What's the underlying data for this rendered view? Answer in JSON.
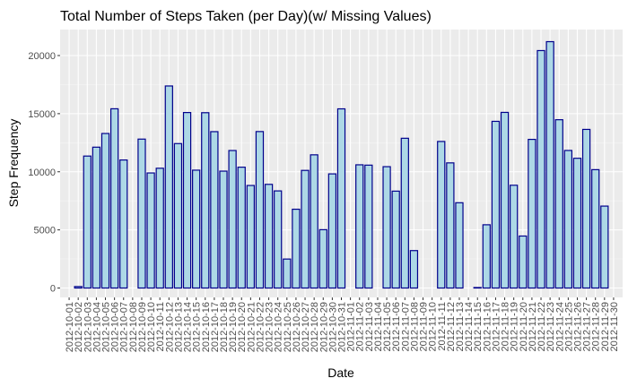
{
  "chart_data": {
    "type": "bar",
    "title": "Total Number of Steps Taken (per Day)(w/ Missing Values)",
    "xlabel": "Date",
    "ylabel": "Step Frequency",
    "ylim": [
      0,
      22000
    ],
    "yticks": [
      0,
      5000,
      10000,
      15000,
      20000
    ],
    "grid": true,
    "legend": "none",
    "colors": {
      "panel_background": "#ebebeb",
      "grid_major": "#ffffff",
      "grid_minor": "#f5f5f5",
      "bar_fill": "#add8e6",
      "bar_outline": "#00008b",
      "tick_text": "#4d4d4d",
      "tick_mark": "#333333"
    },
    "categories": [
      "2012-10-01",
      "2012-10-02",
      "2012-10-03",
      "2012-10-04",
      "2012-10-05",
      "2012-10-06",
      "2012-10-07",
      "2012-10-08",
      "2012-10-09",
      "2012-10-10",
      "2012-10-11",
      "2012-10-12",
      "2012-10-13",
      "2012-10-14",
      "2012-10-15",
      "2012-10-16",
      "2012-10-17",
      "2012-10-18",
      "2012-10-19",
      "2012-10-20",
      "2012-10-21",
      "2012-10-22",
      "2012-10-23",
      "2012-10-24",
      "2012-10-25",
      "2012-10-26",
      "2012-10-27",
      "2012-10-28",
      "2012-10-29",
      "2012-10-30",
      "2012-10-31",
      "2012-11-01",
      "2012-11-02",
      "2012-11-03",
      "2012-11-04",
      "2012-11-05",
      "2012-11-06",
      "2012-11-07",
      "2012-11-08",
      "2012-11-09",
      "2012-11-10",
      "2012-11-11",
      "2012-11-12",
      "2012-11-13",
      "2012-11-14",
      "2012-11-15",
      "2012-11-16",
      "2012-11-17",
      "2012-11-18",
      "2012-11-19",
      "2012-11-20",
      "2012-11-21",
      "2012-11-22",
      "2012-11-23",
      "2012-11-24",
      "2012-11-25",
      "2012-11-26",
      "2012-11-27",
      "2012-11-28",
      "2012-11-29",
      "2012-11-30"
    ],
    "values": [
      0,
      126,
      11352,
      12116,
      13294,
      15420,
      11015,
      0,
      12811,
      9900,
      10304,
      17382,
      12426,
      15098,
      10139,
      15084,
      13452,
      10056,
      11829,
      10395,
      8821,
      13460,
      8918,
      8355,
      2492,
      6778,
      10119,
      11458,
      5018,
      9819,
      15414,
      0,
      10600,
      10571,
      0,
      10439,
      8334,
      12883,
      3219,
      0,
      0,
      12608,
      10765,
      7336,
      0,
      41,
      5441,
      14339,
      15110,
      8841,
      4472,
      12787,
      20427,
      21194,
      14478,
      11834,
      11162,
      13646,
      10183,
      7047,
      0
    ]
  }
}
